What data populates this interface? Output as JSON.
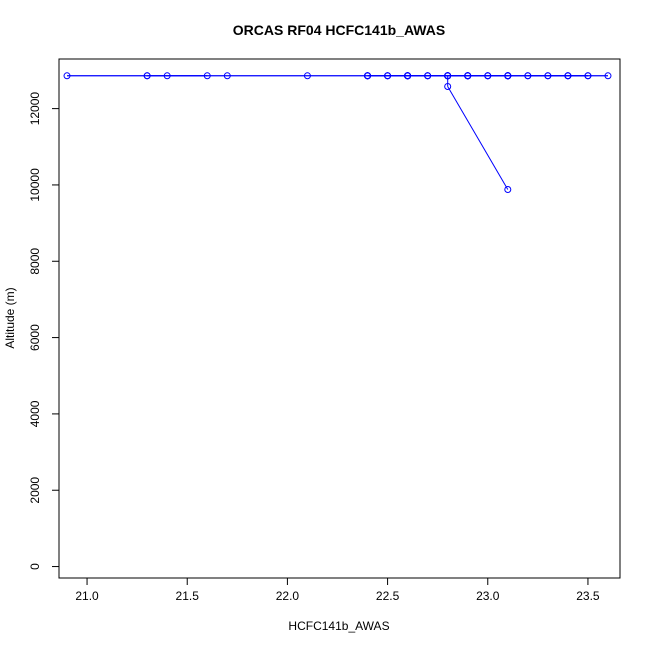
{
  "chart_data": {
    "type": "line",
    "title": "ORCAS RF04 HCFC141b_AWAS",
    "xlabel": "HCFC141b_AWAS",
    "ylabel": "Altitude (m)",
    "xlim": [
      20.86,
      23.66
    ],
    "ylim": [
      -300,
      13300
    ],
    "xticks": [
      21.0,
      21.5,
      22.0,
      22.5,
      23.0,
      23.5
    ],
    "xtick_labels": [
      "21.0",
      "21.5",
      "22.0",
      "22.5",
      "23.0",
      "23.5"
    ],
    "yticks": [
      0,
      2000,
      4000,
      6000,
      8000,
      10000,
      12000
    ],
    "ytick_labels": [
      "0",
      "2000",
      "4000",
      "6000",
      "8000",
      "10000",
      "12000"
    ],
    "grid": false,
    "series": [
      {
        "color": "#0000ff",
        "marker": "open-circle",
        "x": [
          23.1,
          22.8,
          22.8,
          22.4,
          22.1,
          21.7,
          21.4,
          21.3,
          21.6,
          21.3,
          20.9,
          22.8,
          22.8,
          22.9,
          22.9,
          22.6,
          22.8,
          22.8,
          22.8,
          23.0,
          23.1,
          22.4,
          22.4,
          22.6,
          22.5,
          22.5,
          22.5,
          23.1,
          23.1,
          22.6,
          22.6,
          22.6,
          22.6,
          23.1,
          22.9,
          22.7,
          22.8,
          22.9,
          23.0,
          23.1,
          22.9,
          22.9,
          22.7,
          22.6,
          22.6,
          22.9,
          23.4,
          23.2,
          23.5,
          23.4,
          23.6,
          23.2,
          23.0,
          22.4,
          22.4,
          22.7,
          22.8,
          23.3,
          23.3,
          23.4,
          23.5,
          23.1
        ],
        "y": [
          9880,
          12580,
          12860,
          12860,
          12860,
          12860,
          12860,
          12860,
          12860,
          12860,
          12860,
          12860,
          12860,
          12860,
          12860,
          12860,
          12860,
          12860,
          12860,
          12860,
          12860,
          12860,
          12860,
          12860,
          12860,
          12860,
          12860,
          12860,
          12860,
          12860,
          12860,
          12860,
          12860,
          12860,
          12860,
          12860,
          12860,
          12860,
          12860,
          12860,
          12860,
          12860,
          12860,
          12860,
          12860,
          12860,
          12860,
          12860,
          12860,
          12860,
          12860,
          12860,
          12860,
          12860,
          12860,
          12860,
          12860,
          12860,
          12860,
          12860,
          12860,
          12860
        ]
      }
    ]
  }
}
